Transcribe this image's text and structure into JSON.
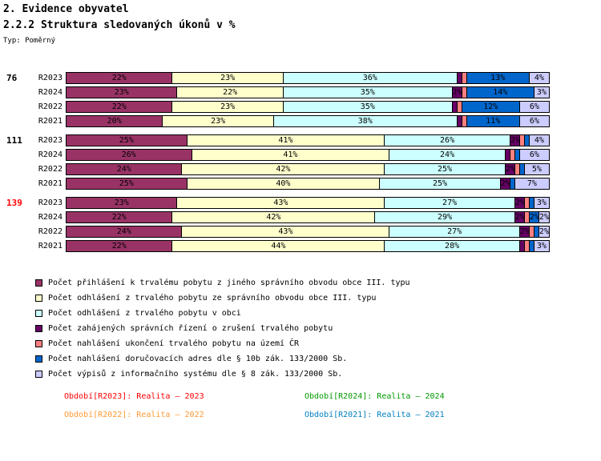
{
  "header": {
    "title": "2. Evidence obyvatel",
    "subtitle": "2.2.2 Struktura sledovaných úkonů v %",
    "type_label": "Typ: Poměrný"
  },
  "chart_data": {
    "type": "bar",
    "orientation": "horizontal",
    "stacked": true,
    "unit": "%",
    "xlim": [
      0,
      100
    ],
    "series_labels": [
      "Počet přihlášení k trvalému pobytu z jiného správního obvodu obce III. typu",
      "Počet odhlášení z trvalého pobytu ze správního obvodu obce III. typu",
      "Počet odhlášení z trvalého pobytu v obci",
      "Počet zahájených správních řízení o zrušení trvalého pobytu",
      "Počet nahlášení ukončení trvalého pobytu na území ČR",
      "Počet nahlášení doručovacích adres dle § 10b zák. 133/2000 Sb.",
      "Počet výpisů z informačního systému dle § 8 zák. 133/2000 Sb."
    ],
    "series_colors": [
      "#993366",
      "#FFFFCC",
      "#CCFFFF",
      "#660066",
      "#FF8080",
      "#0066CC",
      "#CCCCFF"
    ],
    "groups": [
      {
        "label": "76",
        "label_color": "#000000",
        "rows": [
          {
            "label": "R2023",
            "values": [
              22,
              23,
              36,
              1,
              1,
              13,
              4
            ]
          },
          {
            "label": "R2024",
            "values": [
              23,
              22,
              35,
              2,
              1,
              14,
              3
            ]
          },
          {
            "label": "R2022",
            "values": [
              22,
              23,
              35,
              1,
              1,
              12,
              6
            ]
          },
          {
            "label": "R2021",
            "values": [
              20,
              23,
              38,
              1,
              1,
              11,
              6
            ]
          }
        ]
      },
      {
        "label": "111",
        "label_color": "#000000",
        "rows": [
          {
            "label": "R2023",
            "values": [
              25,
              41,
              26,
              2,
              1,
              1,
              4
            ]
          },
          {
            "label": "R2024",
            "values": [
              26,
              41,
              24,
              1,
              1,
              1,
              6
            ]
          },
          {
            "label": "R2022",
            "values": [
              24,
              42,
              25,
              2,
              1,
              1,
              5
            ]
          },
          {
            "label": "R2021",
            "values": [
              25,
              40,
              25,
              2,
              0,
              1,
              7
            ]
          }
        ]
      },
      {
        "label": "139",
        "label_color": "#FF0000",
        "rows": [
          {
            "label": "R2023",
            "values": [
              23,
              43,
              27,
              2,
              1,
              1,
              3
            ]
          },
          {
            "label": "R2024",
            "values": [
              22,
              42,
              29,
              2,
              1,
              2,
              2
            ]
          },
          {
            "label": "R2022",
            "values": [
              24,
              43,
              27,
              2,
              1,
              1,
              2
            ]
          },
          {
            "label": "R2021",
            "values": [
              22,
              44,
              28,
              1,
              1,
              1,
              3
            ]
          }
        ]
      }
    ]
  },
  "period_legend": {
    "items": [
      {
        "label": "Období[R2023]: Realita – 2023",
        "color": "#FF0000"
      },
      {
        "label": "Období[R2024]: Realita – 2024",
        "color": "#009900"
      },
      {
        "label": "Období[R2022]: Realita – 2022",
        "color": "#FF9933"
      },
      {
        "label": "Období[R2021]: Realita – 2021",
        "color": "#0080C0"
      }
    ]
  }
}
